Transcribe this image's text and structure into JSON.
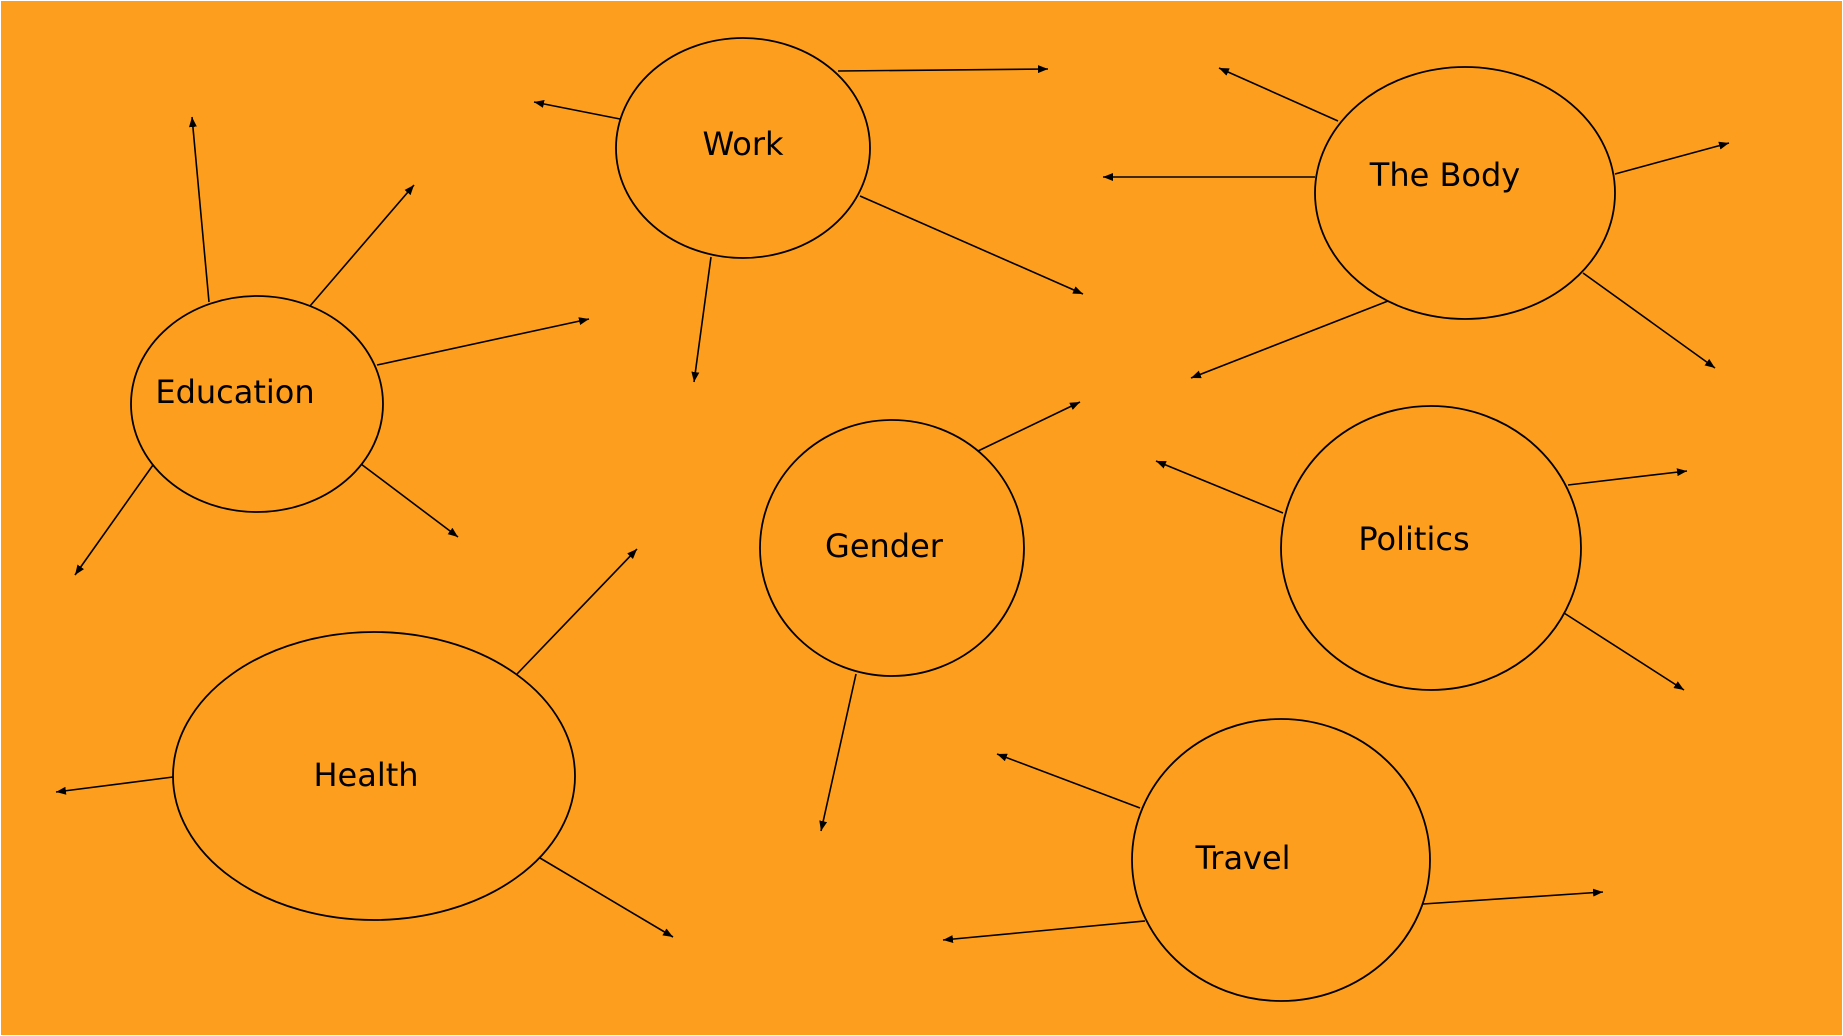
{
  "colors": {
    "background": "#FE9E1E",
    "stroke": "#000000",
    "text": "#000000"
  },
  "nodes": [
    {
      "id": "work",
      "label": "Work"
    },
    {
      "id": "the-body",
      "label": "The Body"
    },
    {
      "id": "education",
      "label": "Education"
    },
    {
      "id": "gender",
      "label": "Gender"
    },
    {
      "id": "politics",
      "label": "Politics"
    },
    {
      "id": "health",
      "label": "Health"
    },
    {
      "id": "travel",
      "label": "Travel"
    }
  ]
}
